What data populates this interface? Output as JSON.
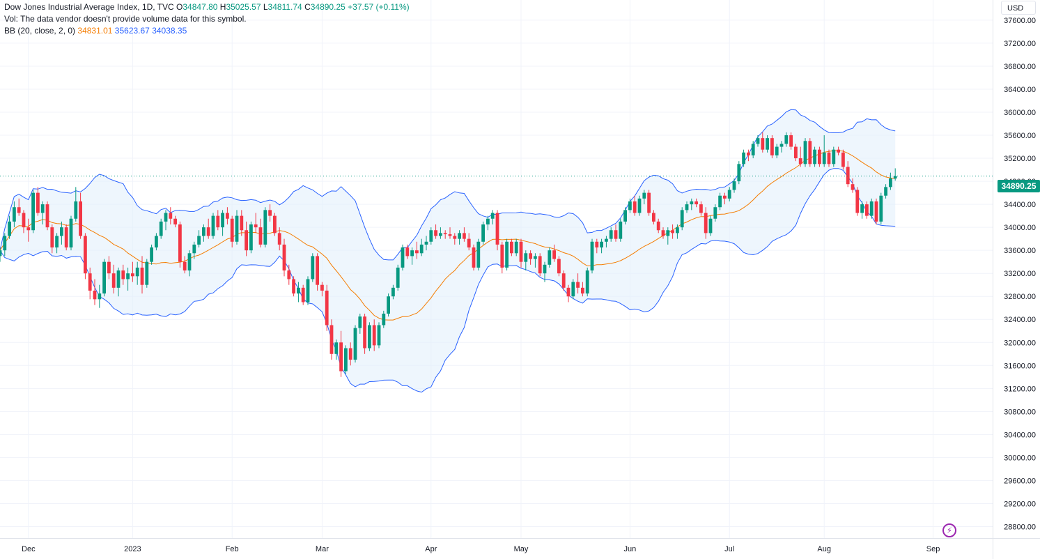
{
  "legend": {
    "symbol": "Dow Jones Industrial Average Index, 1D, TVC",
    "o_label": "O",
    "o_value": "34847.80",
    "h_label": "H",
    "h_value": "35025.57",
    "l_label": "L",
    "l_value": "34811.74",
    "c_label": "C",
    "c_value": "34890.25",
    "change": "+37.57 (+0.11%)",
    "vol_note": "Vol: The data vendor doesn't provide volume data for this symbol.",
    "bb_label": "BB (20, close, 2, 0)",
    "bb_basis": "34831.01",
    "bb_upper": "35623.67",
    "bb_lower": "34038.35"
  },
  "currency": "USD",
  "last_price": "34890.25",
  "colors": {
    "up": "#089981",
    "down": "#f23645",
    "basis": "#f57c00",
    "bands": "#2962ff",
    "band_fill": "#e3f0fb",
    "grid": "#f0f3fa"
  },
  "chart_data": {
    "type": "candlestick",
    "title": "Dow Jones Industrial Average Index, 1D, TVC",
    "y_axis_side": "right",
    "ylim": [
      28600,
      37950
    ],
    "y_ticks": [
      "37600.00",
      "37200.00",
      "36800.00",
      "36400.00",
      "36000.00",
      "35600.00",
      "35200.00",
      "34800.00",
      "34400.00",
      "34000.00",
      "33600.00",
      "33200.00",
      "32800.00",
      "32400.00",
      "32000.00",
      "31600.00",
      "31200.00",
      "30800.00",
      "30400.00",
      "30000.00",
      "29600.00",
      "29200.00",
      "28800.00"
    ],
    "x_labels": [
      {
        "label": "Dec",
        "index": 6
      },
      {
        "label": "2023",
        "index": 28
      },
      {
        "label": "Feb",
        "index": 49
      },
      {
        "label": "Mar",
        "index": 68
      },
      {
        "label": "Apr",
        "index": 91
      },
      {
        "label": "May",
        "index": 110
      },
      {
        "label": "Jun",
        "index": 133
      },
      {
        "label": "Jul",
        "index": 154
      },
      {
        "label": "Aug",
        "index": 174
      },
      {
        "label": "Sep",
        "index": 197
      }
    ],
    "candles": [
      [
        33500,
        33650,
        33400,
        33600
      ],
      [
        33600,
        33900,
        33500,
        33850
      ],
      [
        33850,
        34200,
        33800,
        34100
      ],
      [
        34100,
        34450,
        34000,
        34350
      ],
      [
        34350,
        34500,
        34200,
        34250
      ],
      [
        34250,
        34300,
        33900,
        34000
      ],
      [
        34000,
        34150,
        33750,
        33950
      ],
      [
        33950,
        34650,
        33900,
        34600
      ],
      [
        34600,
        34700,
        34200,
        34250
      ],
      [
        34250,
        34450,
        34050,
        34400
      ],
      [
        34400,
        34450,
        33950,
        34000
      ],
      [
        34000,
        34050,
        33550,
        33650
      ],
      [
        33650,
        33900,
        33550,
        33850
      ],
      [
        33850,
        34100,
        33700,
        34000
      ],
      [
        34000,
        34050,
        33600,
        33650
      ],
      [
        33650,
        34200,
        33600,
        34150
      ],
      [
        34150,
        34700,
        34100,
        34450
      ],
      [
        34450,
        34600,
        33800,
        33850
      ],
      [
        33850,
        33900,
        33100,
        33200
      ],
      [
        33200,
        33300,
        32750,
        32900
      ],
      [
        32900,
        33100,
        32650,
        32750
      ],
      [
        32750,
        33000,
        32600,
        32850
      ],
      [
        32850,
        33450,
        32800,
        33400
      ],
      [
        33400,
        33500,
        33100,
        33200
      ],
      [
        33200,
        33350,
        32850,
        32950
      ],
      [
        32950,
        33300,
        32800,
        33250
      ],
      [
        33250,
        33350,
        33000,
        33100
      ],
      [
        33100,
        33300,
        32900,
        33200
      ],
      [
        33200,
        33400,
        33050,
        33150
      ],
      [
        33150,
        33400,
        33000,
        33300
      ],
      [
        33300,
        33500,
        32850,
        33000
      ],
      [
        33000,
        33450,
        32950,
        33400
      ],
      [
        33400,
        33700,
        33350,
        33650
      ],
      [
        33650,
        33900,
        33600,
        33850
      ],
      [
        33850,
        34150,
        33800,
        34100
      ],
      [
        34100,
        34300,
        33950,
        34250
      ],
      [
        34250,
        34350,
        34050,
        34150
      ],
      [
        34150,
        34200,
        34000,
        34050
      ],
      [
        34050,
        34100,
        33300,
        33400
      ],
      [
        33400,
        33500,
        33200,
        33250
      ],
      [
        33250,
        33600,
        33150,
        33550
      ],
      [
        33550,
        33750,
        33450,
        33700
      ],
      [
        33700,
        33950,
        33650,
        33850
      ],
      [
        33850,
        34050,
        33750,
        34000
      ],
      [
        34000,
        34150,
        33800,
        33850
      ],
      [
        33850,
        34250,
        33800,
        34200
      ],
      [
        34200,
        34300,
        33950,
        34000
      ],
      [
        34000,
        34300,
        33850,
        34250
      ],
      [
        34250,
        34350,
        34050,
        34150
      ],
      [
        34150,
        34200,
        33650,
        33750
      ],
      [
        33750,
        34300,
        33700,
        34200
      ],
      [
        34200,
        34300,
        33850,
        33950
      ],
      [
        33950,
        34100,
        33500,
        33600
      ],
      [
        33600,
        34100,
        33550,
        34050
      ],
      [
        34050,
        34250,
        33900,
        34000
      ],
      [
        34000,
        34150,
        33650,
        33700
      ],
      [
        33700,
        34350,
        33650,
        34300
      ],
      [
        34300,
        34400,
        34100,
        34200
      ],
      [
        34200,
        34250,
        33850,
        33900
      ],
      [
        33900,
        34000,
        33600,
        33700
      ],
      [
        33700,
        33800,
        33150,
        33250
      ],
      [
        33250,
        33350,
        33000,
        33100
      ],
      [
        33100,
        33150,
        32800,
        32850
      ],
      [
        32850,
        33050,
        32700,
        32950
      ],
      [
        32950,
        33000,
        32650,
        32700
      ],
      [
        32700,
        33150,
        32650,
        33100
      ],
      [
        33100,
        33550,
        33050,
        33500
      ],
      [
        33500,
        33550,
        32900,
        33000
      ],
      [
        33000,
        33050,
        32800,
        32900
      ],
      [
        32900,
        33000,
        32200,
        32300
      ],
      [
        32300,
        32400,
        31700,
        31800
      ],
      [
        31800,
        32050,
        31700,
        32000
      ],
      [
        32000,
        32200,
        31400,
        31500
      ],
      [
        31500,
        31950,
        31450,
        31900
      ],
      [
        31900,
        32000,
        31600,
        31700
      ],
      [
        31700,
        32300,
        31650,
        32250
      ],
      [
        32250,
        32500,
        32150,
        32450
      ],
      [
        32450,
        32500,
        31800,
        31900
      ],
      [
        31900,
        32350,
        31850,
        32300
      ],
      [
        32300,
        32400,
        31850,
        31950
      ],
      [
        31950,
        32350,
        31900,
        32300
      ],
      [
        32300,
        32550,
        32250,
        32500
      ],
      [
        32500,
        32850,
        32450,
        32800
      ],
      [
        32800,
        33000,
        32750,
        32950
      ],
      [
        32950,
        33350,
        32900,
        33300
      ],
      [
        33300,
        33700,
        33250,
        33650
      ],
      [
        33650,
        33700,
        33450,
        33500
      ],
      [
        33500,
        33650,
        33350,
        33600
      ],
      [
        33600,
        33750,
        33450,
        33550
      ],
      [
        33550,
        33800,
        33500,
        33700
      ],
      [
        33700,
        33850,
        33600,
        33750
      ],
      [
        33750,
        34000,
        33700,
        33950
      ],
      [
        33950,
        34050,
        33800,
        33850
      ],
      [
        33850,
        34000,
        33800,
        33900
      ],
      [
        33900,
        33950,
        33800,
        33880
      ],
      [
        33880,
        34000,
        33800,
        33850
      ],
      [
        33850,
        33900,
        33700,
        33800
      ],
      [
        33800,
        33950,
        33700,
        33900
      ],
      [
        33900,
        34000,
        33750,
        33800
      ],
      [
        33800,
        33900,
        33600,
        33650
      ],
      [
        33650,
        33700,
        33250,
        33300
      ],
      [
        33300,
        33800,
        33250,
        33750
      ],
      [
        33750,
        34100,
        33700,
        34050
      ],
      [
        34050,
        34200,
        33950,
        34150
      ],
      [
        34150,
        34300,
        34050,
        34250
      ],
      [
        34250,
        34300,
        33600,
        33700
      ],
      [
        33700,
        33750,
        33200,
        33300
      ],
      [
        33300,
        33800,
        33250,
        33750
      ],
      [
        33750,
        33800,
        33500,
        33550
      ],
      [
        33550,
        33800,
        33500,
        33750
      ],
      [
        33750,
        33800,
        33300,
        33400
      ],
      [
        33400,
        33600,
        33250,
        33550
      ],
      [
        33550,
        33600,
        33350,
        33450
      ],
      [
        33450,
        33550,
        33300,
        33500
      ],
      [
        33500,
        33550,
        33150,
        33200
      ],
      [
        33200,
        33400,
        33050,
        33350
      ],
      [
        33350,
        33650,
        33300,
        33600
      ],
      [
        33600,
        33700,
        33400,
        33450
      ],
      [
        33450,
        33500,
        33150,
        33200
      ],
      [
        33200,
        33250,
        32900,
        32950
      ],
      [
        32950,
        33000,
        32700,
        32800
      ],
      [
        32800,
        33100,
        32750,
        33050
      ],
      [
        33050,
        33200,
        32850,
        32950
      ],
      [
        32950,
        33050,
        32800,
        32850
      ],
      [
        32850,
        33300,
        32800,
        33250
      ],
      [
        33250,
        33800,
        33200,
        33750
      ],
      [
        33750,
        33800,
        33550,
        33650
      ],
      [
        33650,
        33800,
        33550,
        33750
      ],
      [
        33750,
        33850,
        33650,
        33800
      ],
      [
        33800,
        34000,
        33750,
        33950
      ],
      [
        33950,
        34050,
        33750,
        33800
      ],
      [
        33800,
        34150,
        33750,
        34100
      ],
      [
        34100,
        34350,
        34050,
        34300
      ],
      [
        34300,
        34500,
        34250,
        34450
      ],
      [
        34450,
        34550,
        34200,
        34250
      ],
      [
        34250,
        34550,
        34200,
        34500
      ],
      [
        34500,
        34650,
        34400,
        34600
      ],
      [
        34600,
        34650,
        34200,
        34250
      ],
      [
        34250,
        34300,
        34050,
        34100
      ],
      [
        34100,
        34150,
        33900,
        33950
      ],
      [
        33950,
        34000,
        33800,
        33850
      ],
      [
        33850,
        34000,
        33700,
        33950
      ],
      [
        33950,
        34050,
        33800,
        33900
      ],
      [
        33900,
        34050,
        33800,
        34000
      ],
      [
        34000,
        34350,
        33950,
        34300
      ],
      [
        34300,
        34450,
        34250,
        34400
      ],
      [
        34400,
        34500,
        34300,
        34450
      ],
      [
        34450,
        34500,
        34350,
        34400
      ],
      [
        34400,
        34450,
        34200,
        34250
      ],
      [
        34250,
        34350,
        33800,
        33900
      ],
      [
        33900,
        34200,
        33850,
        34150
      ],
      [
        34150,
        34400,
        34100,
        34350
      ],
      [
        34350,
        34600,
        34300,
        34550
      ],
      [
        34550,
        34600,
        34400,
        34500
      ],
      [
        34500,
        34700,
        34450,
        34650
      ],
      [
        34650,
        34850,
        34600,
        34800
      ],
      [
        34800,
        35150,
        34750,
        35100
      ],
      [
        35100,
        35350,
        35050,
        35300
      ],
      [
        35300,
        35350,
        35150,
        35250
      ],
      [
        35250,
        35500,
        35200,
        35450
      ],
      [
        35450,
        35600,
        35400,
        35550
      ],
      [
        35550,
        35650,
        35300,
        35350
      ],
      [
        35350,
        35600,
        35300,
        35550
      ],
      [
        35550,
        35600,
        35200,
        35250
      ],
      [
        35250,
        35450,
        35200,
        35400
      ],
      [
        35400,
        35500,
        35300,
        35450
      ],
      [
        35450,
        35650,
        35400,
        35600
      ],
      [
        35600,
        35650,
        35350,
        35400
      ],
      [
        35400,
        35450,
        35150,
        35200
      ],
      [
        35200,
        35400,
        35050,
        35100
      ],
      [
        35100,
        35550,
        35050,
        35500
      ],
      [
        35500,
        35550,
        35050,
        35100
      ],
      [
        35100,
        35400,
        35050,
        35350
      ],
      [
        35350,
        35400,
        35050,
        35100
      ],
      [
        35100,
        35600,
        35050,
        35300
      ],
      [
        35300,
        35350,
        35050,
        35100
      ],
      [
        35100,
        35400,
        35050,
        35350
      ],
      [
        35350,
        35400,
        35250,
        35300
      ],
      [
        35300,
        35350,
        35000,
        35050
      ],
      [
        35050,
        35150,
        34700,
        34750
      ],
      [
        34750,
        34850,
        34600,
        34650
      ],
      [
        34650,
        34700,
        34200,
        34250
      ],
      [
        34250,
        34450,
        34150,
        34400
      ],
      [
        34400,
        34450,
        34150,
        34200
      ],
      [
        34200,
        34500,
        34150,
        34450
      ],
      [
        34450,
        34500,
        34050,
        34100
      ],
      [
        34100,
        34600,
        34050,
        34550
      ],
      [
        34550,
        34750,
        34500,
        34700
      ],
      [
        34700,
        34950,
        34650,
        34850
      ],
      [
        34847.8,
        35025.57,
        34811.74,
        34890.25
      ]
    ],
    "bollinger": {
      "label": "BB (20, close, 2, 0)",
      "basis_color": "#f57c00",
      "band_color": "#2962ff",
      "latest": {
        "basis": 34831.01,
        "upper": 35623.67,
        "lower": 34038.35
      }
    }
  }
}
